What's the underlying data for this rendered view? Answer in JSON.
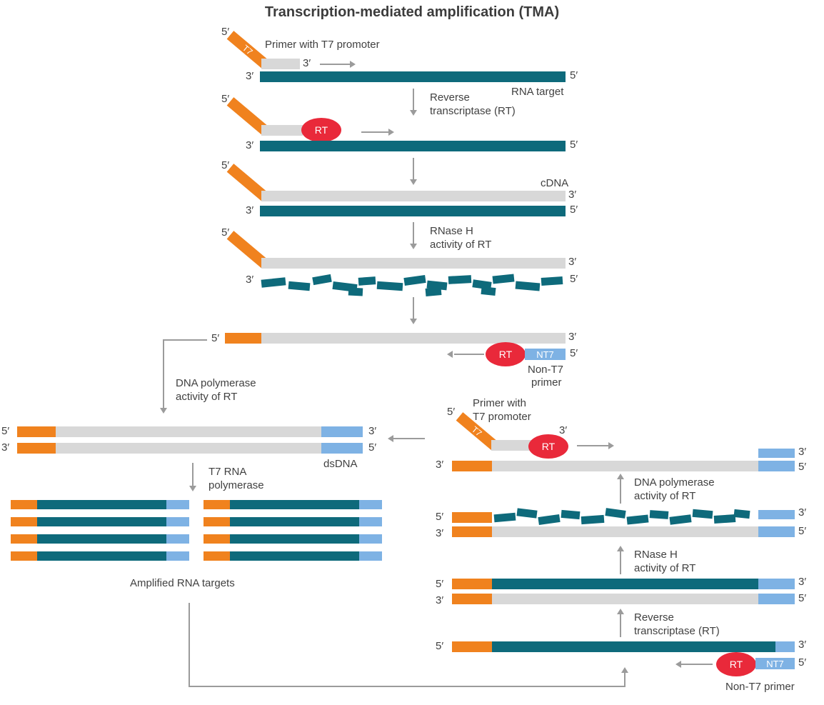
{
  "title": "Transcription-mediated amplification (TMA)",
  "colors": {
    "orange": "#F0821E",
    "teal": "#0E6A7B",
    "grayBar": "#D8D8D8",
    "blue": "#7EB2E4",
    "red": "#E9293A",
    "line": "#9B9B9B",
    "text": "#414141",
    "title": "#3C3C3C"
  },
  "labels": {
    "five_prime": "5′",
    "three_prime": "3′",
    "t7": "T7",
    "rt": "RT",
    "nt7": "NT7",
    "primer_t7_full": "Primer with T7 promoter",
    "primer_with": "Primer with",
    "t7_promoter": "T7 promoter",
    "rna_target": "RNA target",
    "reverse_line1": "Reverse",
    "reverse_line2": "transcriptase (RT)",
    "cdna": "cDNA",
    "rnase_line1": "RNase H",
    "rnase_line2": "activity of RT",
    "non_t7_line1": "Non-T7",
    "non_t7_line2": "primer",
    "non_t7_primer": "Non-T7 primer",
    "dna_pol_line1": "DNA polymerase",
    "dna_pol_line2": "activity of RT",
    "dsdna": "dsDNA",
    "t7_pol_line1": "T7 RNA",
    "t7_pol_line2": "polymerase",
    "amplified": "Amplified RNA targets"
  }
}
